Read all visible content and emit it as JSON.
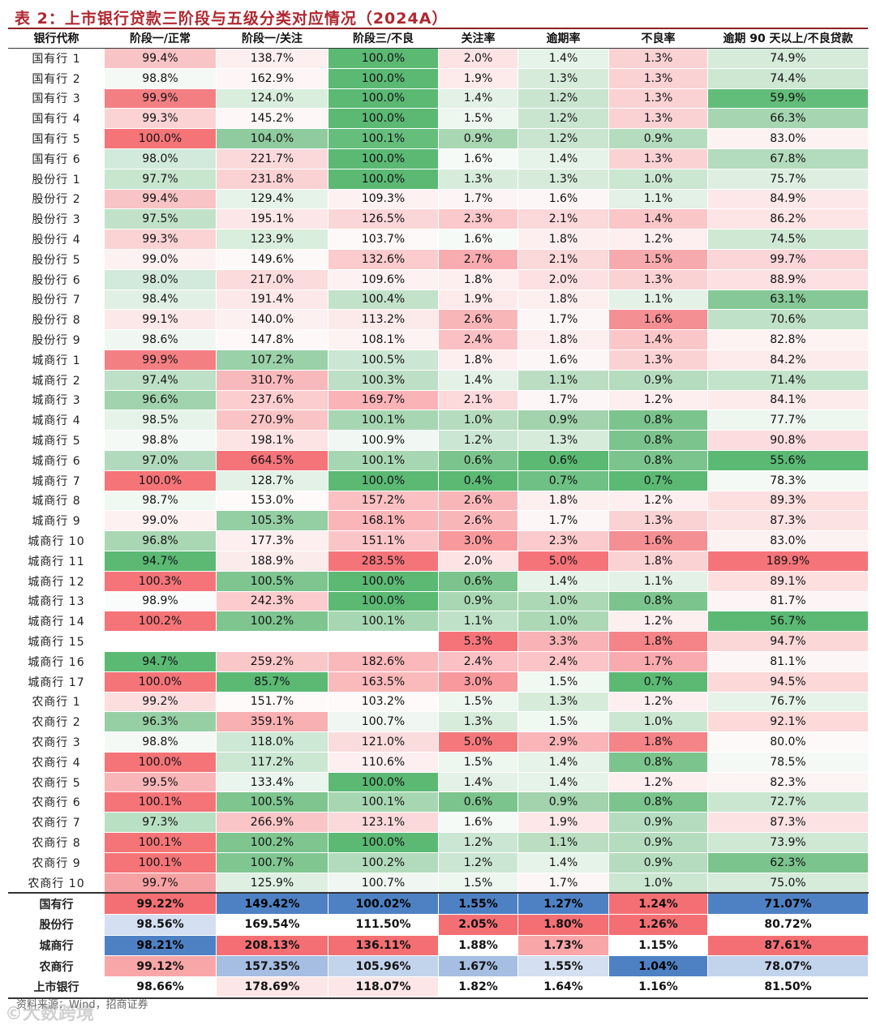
{
  "title": "表 2：上市银行贷款三阶段与五级分类对应情况（2024A）",
  "headers": [
    "银行代称",
    "阶段一/正常",
    "阶段一/关注",
    "阶段三/不良",
    "关注率",
    "逾期率",
    "不良率",
    "逾期 90 天以上/不良贷款"
  ],
  "rows": [
    {
      "name": "国有行 1",
      "cells": [
        "99.4%",
        "138.7%",
        "100.0%",
        "2.0%",
        "1.4%",
        "1.3%",
        "74.9%"
      ],
      "colors": [
        "#f9c4c6",
        "#fdeff0",
        "#5bb974",
        "#fde3e4",
        "#e6f3e8",
        "#fad2d4",
        "#d6ebda"
      ]
    },
    {
      "name": "国有行 2",
      "cells": [
        "98.8%",
        "162.9%",
        "100.0%",
        "1.9%",
        "1.3%",
        "1.3%",
        "74.4%"
      ],
      "colors": [
        "#f4f9f5",
        "#fef6f6",
        "#5bb974",
        "#fdeaea",
        "#d7ebdb",
        "#fad2d4",
        "#cee7d3"
      ]
    },
    {
      "name": "国有行 3",
      "cells": [
        "99.9%",
        "124.0%",
        "100.0%",
        "1.4%",
        "1.2%",
        "1.3%",
        "59.9%"
      ],
      "colors": [
        "#f47f83",
        "#d9eedd",
        "#5bb974",
        "#e3f1e6",
        "#c9e4cf",
        "#fad2d4",
        "#63bd7a"
      ]
    },
    {
      "name": "国有行 4",
      "cells": [
        "99.3%",
        "145.2%",
        "100.0%",
        "1.5%",
        "1.2%",
        "1.3%",
        "66.3%"
      ],
      "colors": [
        "#fbd3d5",
        "#fdf7f7",
        "#5bb974",
        "#edf6ef",
        "#c9e4cf",
        "#fad2d4",
        "#a6d6b1"
      ]
    },
    {
      "name": "国有行 5",
      "cells": [
        "100.0%",
        "104.0%",
        "100.1%",
        "0.9%",
        "1.2%",
        "0.9%",
        "83.0%"
      ],
      "colors": [
        "#f47478",
        "#8fcb9e",
        "#66be7d",
        "#a9d7b4",
        "#c9e4cf",
        "#b5dcbe",
        "#fdf2f2"
      ]
    },
    {
      "name": "国有行 6",
      "cells": [
        "98.0%",
        "221.7%",
        "100.0%",
        "1.6%",
        "1.4%",
        "1.3%",
        "67.8%"
      ],
      "colors": [
        "#d2eadb",
        "#fbd9da",
        "#5bb974",
        "#f5faf6",
        "#e6f3e8",
        "#fad2d4",
        "#b3dbbd"
      ]
    },
    {
      "name": "股份行 1",
      "cells": [
        "97.7%",
        "231.8%",
        "100.0%",
        "1.3%",
        "1.3%",
        "1.0%",
        "75.7%"
      ],
      "colors": [
        "#c8e5ce",
        "#fbd2d4",
        "#5bb974",
        "#d8ecdc",
        "#d7ebdb",
        "#cbe6d1",
        "#deefe2"
      ]
    },
    {
      "name": "股份行 2",
      "cells": [
        "99.4%",
        "129.4%",
        "109.3%",
        "1.7%",
        "1.6%",
        "1.1%",
        "84.9%"
      ],
      "colors": [
        "#f9c4c6",
        "#e6f3e9",
        "#fdf1f2",
        "#fdf5f5",
        "#fdf6f6",
        "#e3f1e6",
        "#fde8e9"
      ]
    },
    {
      "name": "股份行 3",
      "cells": [
        "97.5%",
        "195.1%",
        "126.5%",
        "2.3%",
        "2.1%",
        "1.4%",
        "86.2%"
      ],
      "colors": [
        "#c1e2c9",
        "#fce6e7",
        "#fbd6d8",
        "#fbc9cb",
        "#fbd8da",
        "#fac6c8",
        "#fde4e5"
      ]
    },
    {
      "name": "股份行 4",
      "cells": [
        "99.3%",
        "123.9%",
        "103.7%",
        "1.6%",
        "1.8%",
        "1.2%",
        "74.5%"
      ],
      "colors": [
        "#fbd3d5",
        "#d9eedd",
        "#fef9f9",
        "#f5faf6",
        "#fdeff0",
        "#fdeeef",
        "#cfe8d4"
      ]
    },
    {
      "name": "股份行 5",
      "cells": [
        "99.0%",
        "149.6%",
        "132.6%",
        "2.7%",
        "2.1%",
        "1.5%",
        "99.7%"
      ],
      "colors": [
        "#fdf1f2",
        "#fef9f9",
        "#fbcbcd",
        "#f9acb0",
        "#fbd8da",
        "#f7aaad",
        "#fbd5d7"
      ]
    },
    {
      "name": "股份行 6",
      "cells": [
        "98.0%",
        "217.0%",
        "109.6%",
        "1.8%",
        "2.0%",
        "1.3%",
        "88.9%"
      ],
      "colors": [
        "#d2eadb",
        "#fbdbdc",
        "#fdf1f2",
        "#fdeeef",
        "#fde1e2",
        "#fad2d4",
        "#fde0e1"
      ]
    },
    {
      "name": "股份行 7",
      "cells": [
        "98.4%",
        "191.4%",
        "100.4%",
        "1.9%",
        "1.8%",
        "1.1%",
        "63.1%"
      ],
      "colors": [
        "#e0f0e4",
        "#fce8e9",
        "#c2e2ca",
        "#fdeaea",
        "#fdeff0",
        "#e3f1e6",
        "#86c897"
      ]
    },
    {
      "name": "股份行 8",
      "cells": [
        "99.1%",
        "140.0%",
        "113.2%",
        "2.6%",
        "1.7%",
        "1.6%",
        "70.6%"
      ],
      "colors": [
        "#fde8e9",
        "#fdf0f0",
        "#fceaeb",
        "#f9b6b9",
        "#fdf6f6",
        "#f48f93",
        "#bfe1c7"
      ]
    },
    {
      "name": "股份行 9",
      "cells": [
        "98.6%",
        "147.8%",
        "108.1%",
        "2.4%",
        "1.8%",
        "1.4%",
        "82.8%"
      ],
      "colors": [
        "#f0f7f2",
        "#fef8f8",
        "#fdf3f3",
        "#fac0c3",
        "#fdeff0",
        "#fac6c8",
        "#fdf3f3"
      ]
    },
    {
      "name": "城商行 1",
      "cells": [
        "99.9%",
        "107.2%",
        "100.5%",
        "1.8%",
        "1.6%",
        "1.3%",
        "84.2%"
      ],
      "colors": [
        "#f47f83",
        "#9bd1a8",
        "#cbe6d2",
        "#fdeeef",
        "#fdf6f6",
        "#fad2d4",
        "#fdebeb"
      ]
    },
    {
      "name": "城商行 2",
      "cells": [
        "97.4%",
        "310.7%",
        "100.3%",
        "1.4%",
        "1.1%",
        "0.9%",
        "71.4%"
      ],
      "colors": [
        "#bde0c6",
        "#f8b9bc",
        "#bddfc5",
        "#e3f1e6",
        "#bbdec3",
        "#b5dcbe",
        "#c4e3cb"
      ]
    },
    {
      "name": "城商行 3",
      "cells": [
        "96.6%",
        "237.6%",
        "169.7%",
        "2.1%",
        "1.7%",
        "1.2%",
        "84.1%"
      ],
      "colors": [
        "#a1d4ae",
        "#fbcdcf",
        "#fab4b7",
        "#fcd9db",
        "#fdf6f6",
        "#fdeeef",
        "#fdebeb"
      ]
    },
    {
      "name": "城商行 4",
      "cells": [
        "98.5%",
        "270.9%",
        "100.1%",
        "1.0%",
        "0.9%",
        "0.8%",
        "77.7%"
      ],
      "colors": [
        "#e6f3e9",
        "#fac4c6",
        "#a7d7b2",
        "#b5dcbe",
        "#a2d3ad",
        "#7cc48d",
        "#edf6ef"
      ]
    },
    {
      "name": "城商行 5",
      "cells": [
        "98.8%",
        "198.1%",
        "100.9%",
        "1.2%",
        "1.3%",
        "0.8%",
        "90.8%"
      ],
      "colors": [
        "#f4f9f5",
        "#fce4e5",
        "#f1f8f3",
        "#cbe6d2",
        "#d7ebdb",
        "#7cc48d",
        "#fcdcde"
      ]
    },
    {
      "name": "城商行 6",
      "cells": [
        "97.0%",
        "664.5%",
        "100.1%",
        "0.6%",
        "0.6%",
        "0.8%",
        "55.6%"
      ],
      "colors": [
        "#b0dabb",
        "#f4747a",
        "#a7d7b2",
        "#7cc48d",
        "#5bb974",
        "#7cc48d",
        "#5bb974"
      ]
    },
    {
      "name": "城商行 7",
      "cells": [
        "100.0%",
        "128.7%",
        "100.0%",
        "0.4%",
        "0.7%",
        "0.7%",
        "78.3%"
      ],
      "colors": [
        "#f47478",
        "#e3f1e6",
        "#5bb974",
        "#5bb974",
        "#6fc084",
        "#5bb974",
        "#f4f9f5"
      ]
    },
    {
      "name": "城商行 8",
      "cells": [
        "98.7%",
        "153.0%",
        "157.2%",
        "2.6%",
        "1.8%",
        "1.2%",
        "89.3%"
      ],
      "colors": [
        "#f0f8f2",
        "#fefafa",
        "#fbc0c2",
        "#f9b6b9",
        "#fdeff0",
        "#fdeeef",
        "#fddfe0"
      ]
    },
    {
      "name": "城商行 9",
      "cells": [
        "99.0%",
        "105.3%",
        "168.1%",
        "2.6%",
        "1.7%",
        "1.3%",
        "87.3%"
      ],
      "colors": [
        "#fdf1f2",
        "#94cea3",
        "#fab5b8",
        "#f9b6b9",
        "#fdf6f6",
        "#fad2d4",
        "#fde2e3"
      ]
    },
    {
      "name": "城商行 10",
      "cells": [
        "96.8%",
        "177.3%",
        "151.1%",
        "3.0%",
        "2.3%",
        "1.6%",
        "83.0%"
      ],
      "colors": [
        "#a9d7b4",
        "#fdefef",
        "#fbc5c7",
        "#f7999d",
        "#fbcacc",
        "#f48f93",
        "#fdf2f2"
      ]
    },
    {
      "name": "城商行 11",
      "cells": [
        "94.7%",
        "188.9%",
        "283.5%",
        "2.0%",
        "5.0%",
        "1.8%",
        "189.9%"
      ],
      "colors": [
        "#5bb974",
        "#fcebeb",
        "#f4747a",
        "#fde3e4",
        "#f4747a",
        "#fbd2d4",
        "#f4747a"
      ]
    },
    {
      "name": "城商行 12",
      "cells": [
        "100.3%",
        "100.5%",
        "100.0%",
        "0.6%",
        "1.4%",
        "1.1%",
        "89.1%"
      ],
      "colors": [
        "#f4747a",
        "#7ec58f",
        "#5bb974",
        "#7cc48d",
        "#e6f3e8",
        "#e3f1e6",
        "#fddfe0"
      ]
    },
    {
      "name": "城商行 13",
      "cells": [
        "98.9%",
        "242.3%",
        "100.0%",
        "0.9%",
        "1.0%",
        "0.8%",
        "81.7%"
      ],
      "colors": [
        "#fafcfb",
        "#fbcbcd",
        "#5bb974",
        "#a9d7b4",
        "#acd8b6",
        "#7cc48d",
        "#fdf5f5"
      ]
    },
    {
      "name": "城商行 14",
      "cells": [
        "100.2%",
        "100.2%",
        "100.1%",
        "1.1%",
        "1.0%",
        "1.2%",
        "56.7%"
      ],
      "colors": [
        "#f47478",
        "#7ec58f",
        "#a7d7b2",
        "#bfe1c7",
        "#acd8b6",
        "#fdeeef",
        "#5bb974"
      ]
    },
    {
      "name": "城商行 15",
      "cells": [
        "",
        "",
        "",
        "5.3%",
        "3.3%",
        "1.8%",
        "94.7%"
      ],
      "colors": [
        "#ffffff",
        "#ffffff",
        "#ffffff",
        "#f4747a",
        "#f9b3b6",
        "#f48488",
        "#fcd7d8"
      ]
    },
    {
      "name": "城商行 16",
      "cells": [
        "94.7%",
        "259.2%",
        "182.6%",
        "2.4%",
        "2.4%",
        "1.7%",
        "81.1%"
      ],
      "colors": [
        "#5bb974",
        "#fac7c9",
        "#fbb8bb",
        "#fac0c3",
        "#fbc4c6",
        "#f9aaae",
        "#fdf6f6"
      ]
    },
    {
      "name": "城商行 17",
      "cells": [
        "100.0%",
        "85.7%",
        "163.5%",
        "3.0%",
        "1.5%",
        "0.7%",
        "94.5%"
      ],
      "colors": [
        "#f47478",
        "#5bb974",
        "#fab9bb",
        "#f7999d",
        "#f0f8f2",
        "#5bb974",
        "#fcd8d9"
      ]
    },
    {
      "name": "农商行 1",
      "cells": [
        "99.2%",
        "151.7%",
        "103.2%",
        "1.5%",
        "1.3%",
        "1.2%",
        "76.7%"
      ],
      "colors": [
        "#fcdedf",
        "#fefafa",
        "#fefafa",
        "#edf6ef",
        "#d7ebdb",
        "#fdeeef",
        "#e6f3e9"
      ]
    },
    {
      "name": "农商行 2",
      "cells": [
        "96.3%",
        "359.1%",
        "100.7%",
        "1.3%",
        "1.5%",
        "1.0%",
        "92.1%"
      ],
      "colors": [
        "#97cfa5",
        "#f8b0b3",
        "#f0f7f2",
        "#d8ecdc",
        "#f0f8f2",
        "#cbe6d1",
        "#fdd9da"
      ]
    },
    {
      "name": "农商行 3",
      "cells": [
        "98.8%",
        "118.0%",
        "121.0%",
        "5.0%",
        "2.9%",
        "1.8%",
        "80.0%"
      ],
      "colors": [
        "#f4f9f5",
        "#cde8d4",
        "#fbdcdd",
        "#f4787c",
        "#f9b5b8",
        "#f48488",
        "#fdf9f9"
      ]
    },
    {
      "name": "农商行 4",
      "cells": [
        "100.0%",
        "117.2%",
        "110.6%",
        "1.5%",
        "1.4%",
        "0.8%",
        "78.5%"
      ],
      "colors": [
        "#f47478",
        "#cbe7d2",
        "#fdeff0",
        "#edf6ef",
        "#e6f3e8",
        "#7cc48d",
        "#f4f9f5"
      ]
    },
    {
      "name": "农商行 5",
      "cells": [
        "99.5%",
        "133.4%",
        "100.0%",
        "1.4%",
        "1.4%",
        "1.2%",
        "82.3%"
      ],
      "colors": [
        "#f8b6b9",
        "#eaf5ed",
        "#5bb974",
        "#e3f1e6",
        "#e6f3e8",
        "#fdeeef",
        "#fdf4f4"
      ]
    },
    {
      "name": "农商行 6",
      "cells": [
        "100.1%",
        "100.5%",
        "100.1%",
        "0.6%",
        "0.9%",
        "0.8%",
        "72.7%"
      ],
      "colors": [
        "#f47478",
        "#7ec58f",
        "#a7d7b2",
        "#7cc48d",
        "#a2d3ad",
        "#7cc48d",
        "#cae6d0"
      ]
    },
    {
      "name": "农商行 7",
      "cells": [
        "97.3%",
        "266.9%",
        "123.1%",
        "1.6%",
        "1.9%",
        "0.9%",
        "87.3%"
      ],
      "colors": [
        "#bae0c4",
        "#fac5c7",
        "#fbd9da",
        "#f5faf6",
        "#fde7e8",
        "#b5dcbe",
        "#fde2e3"
      ]
    },
    {
      "name": "农商行 8",
      "cells": [
        "100.1%",
        "100.2%",
        "100.0%",
        "1.2%",
        "1.1%",
        "0.9%",
        "73.9%"
      ],
      "colors": [
        "#f47478",
        "#7ec58f",
        "#5bb974",
        "#cbe6d2",
        "#bbdec3",
        "#b5dcbe",
        "#cfe8d4"
      ]
    },
    {
      "name": "农商行 9",
      "cells": [
        "100.1%",
        "100.7%",
        "100.2%",
        "1.2%",
        "1.4%",
        "0.9%",
        "62.3%"
      ],
      "colors": [
        "#f47478",
        "#80c691",
        "#b2dabc",
        "#cbe6d2",
        "#e6f3e8",
        "#b5dcbe",
        "#7cc48d"
      ]
    },
    {
      "name": "农商行 10",
      "cells": [
        "99.7%",
        "125.9%",
        "100.7%",
        "1.5%",
        "1.7%",
        "1.0%",
        "75.0%"
      ],
      "colors": [
        "#f6a1a4",
        "#dff0e3",
        "#f0f7f2",
        "#edf6ef",
        "#fdf6f6",
        "#cbe6d1",
        "#d6ebda"
      ]
    }
  ],
  "summary": [
    {
      "name": "国有行",
      "cells": [
        "99.22%",
        "149.42%",
        "100.02%",
        "1.55%",
        "1.27%",
        "1.24%",
        "71.07%"
      ],
      "colors": [
        "#f46f73",
        "#4e81c4",
        "#4e81c4",
        "#4e81c4",
        "#4e81c4",
        "#f46f73",
        "#4e81c4"
      ]
    },
    {
      "name": "股份行",
      "cells": [
        "98.56%",
        "169.54%",
        "111.50%",
        "2.05%",
        "1.80%",
        "1.26%",
        "80.72%"
      ],
      "colors": [
        "#d4dff1",
        "#ffffff",
        "#ffffff",
        "#f46f73",
        "#f46f73",
        "#f46f73",
        "#ffffff"
      ]
    },
    {
      "name": "城商行",
      "cells": [
        "98.21%",
        "208.13%",
        "136.11%",
        "1.88%",
        "1.73%",
        "1.15%",
        "87.61%"
      ],
      "colors": [
        "#4e81c4",
        "#f46f73",
        "#f46f73",
        "#ffffff",
        "#f9a6a9",
        "#ffffff",
        "#f46f73"
      ]
    },
    {
      "name": "农商行",
      "cells": [
        "99.12%",
        "157.35%",
        "105.96%",
        "1.67%",
        "1.55%",
        "1.04%",
        "78.07%"
      ],
      "colors": [
        "#f9a6a9",
        "#a5bee2",
        "#c2d3ec",
        "#a5bee2",
        "#d4dff1",
        "#4e81c4",
        "#c2d3ec"
      ]
    },
    {
      "name": "上市银行",
      "cells": [
        "98.66%",
        "178.69%",
        "118.07%",
        "1.82%",
        "1.64%",
        "1.16%",
        "81.50%"
      ],
      "colors": [
        "#ffffff",
        "#fde6e7",
        "#fde6e7",
        "#ffffff",
        "#ffffff",
        "#ffffff",
        "#ffffff"
      ]
    }
  ],
  "source": "资料来源：Wind，招商证券",
  "watermark": "©大数跨境"
}
